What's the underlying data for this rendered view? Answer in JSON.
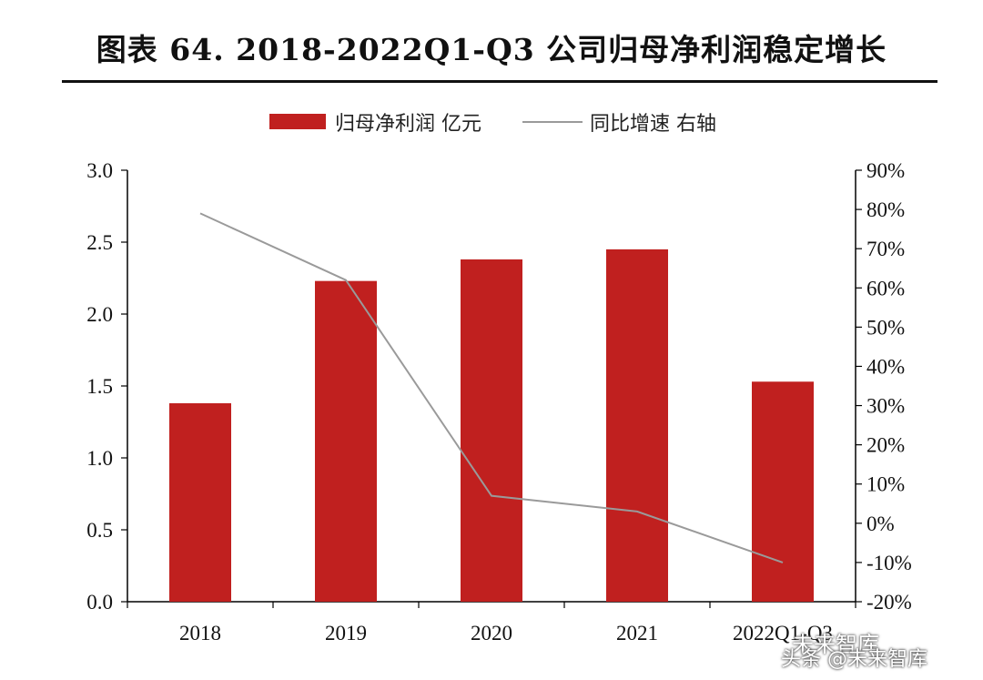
{
  "title": "图表 64. 2018-2022Q1-Q3 公司归母净利润稳定增长",
  "legend": {
    "bar_label": "归母净利润 亿元",
    "line_label": "同比增速 右轴"
  },
  "watermark": {
    "top": "未来智库",
    "bottom": "头条 @未来智库"
  },
  "colors": {
    "bar": "#c0201f",
    "line": "#9a9a9a"
  },
  "chart_data": {
    "type": "bar",
    "title": "图表 64. 2018-2022Q1-Q3 公司归母净利润稳定增长",
    "categories": [
      "2018",
      "2019",
      "2020",
      "2021",
      "2022Q1-Q3"
    ],
    "series": [
      {
        "name": "归母净利润 亿元",
        "type": "bar",
        "axis": "left",
        "values": [
          1.38,
          2.23,
          2.38,
          2.45,
          1.53
        ]
      },
      {
        "name": "同比增速 右轴",
        "type": "line",
        "axis": "right",
        "values": [
          79,
          62,
          7,
          3,
          -10
        ]
      }
    ],
    "y_left": {
      "ylim": [
        0.0,
        3.0
      ],
      "ticks": [
        "0.0",
        "0.5",
        "1.0",
        "1.5",
        "2.0",
        "2.5",
        "3.0"
      ]
    },
    "y_right": {
      "ylim": [
        -20,
        90
      ],
      "ticks": [
        "-20%",
        "-10%",
        "0%",
        "10%",
        "20%",
        "30%",
        "40%",
        "50%",
        "60%",
        "70%",
        "80%",
        "90%"
      ]
    },
    "grid": false,
    "legend_position": "top"
  }
}
